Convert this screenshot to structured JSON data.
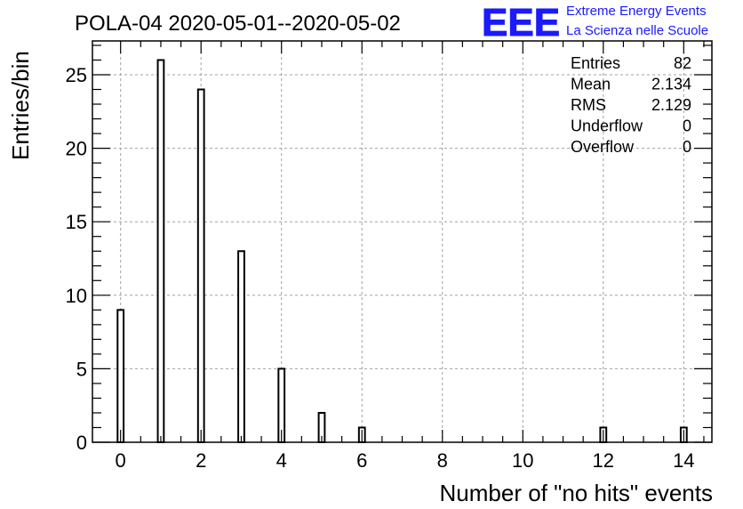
{
  "chart_data": {
    "type": "bar",
    "title": "POLA-04 2020-05-01--2020-05-02",
    "xlabel": "Number of \"no hits\" events",
    "ylabel": "Entries/bin",
    "xlim": [
      -0.7,
      14.7
    ],
    "ylim": [
      0,
      27.3
    ],
    "grid": true,
    "x": [
      0,
      1,
      2,
      3,
      4,
      5,
      6,
      12,
      14
    ],
    "values": [
      9,
      26,
      24,
      13,
      5,
      2,
      1,
      1,
      1
    ],
    "bin_width": 0.15,
    "x_ticks": [
      "0",
      "2",
      "4",
      "6",
      "8",
      "10",
      "12",
      "14"
    ],
    "x_tick_values": [
      0,
      2,
      4,
      6,
      8,
      10,
      12,
      14
    ],
    "y_ticks": [
      "0",
      "5",
      "10",
      "15",
      "20",
      "25"
    ],
    "y_tick_values": [
      0,
      5,
      10,
      15,
      20,
      25
    ],
    "stats": [
      {
        "label": "Entries",
        "value": "82"
      },
      {
        "label": "Mean",
        "value": "2.134"
      },
      {
        "label": "RMS",
        "value": "2.129"
      },
      {
        "label": "Underflow",
        "value": "0"
      },
      {
        "label": "Overflow",
        "value": "0"
      }
    ],
    "logo": {
      "mark": "EEE",
      "line1": "Extreme Energy Events",
      "line2": "La Scienza nelle Scuole",
      "color": "#1a1aff"
    }
  }
}
